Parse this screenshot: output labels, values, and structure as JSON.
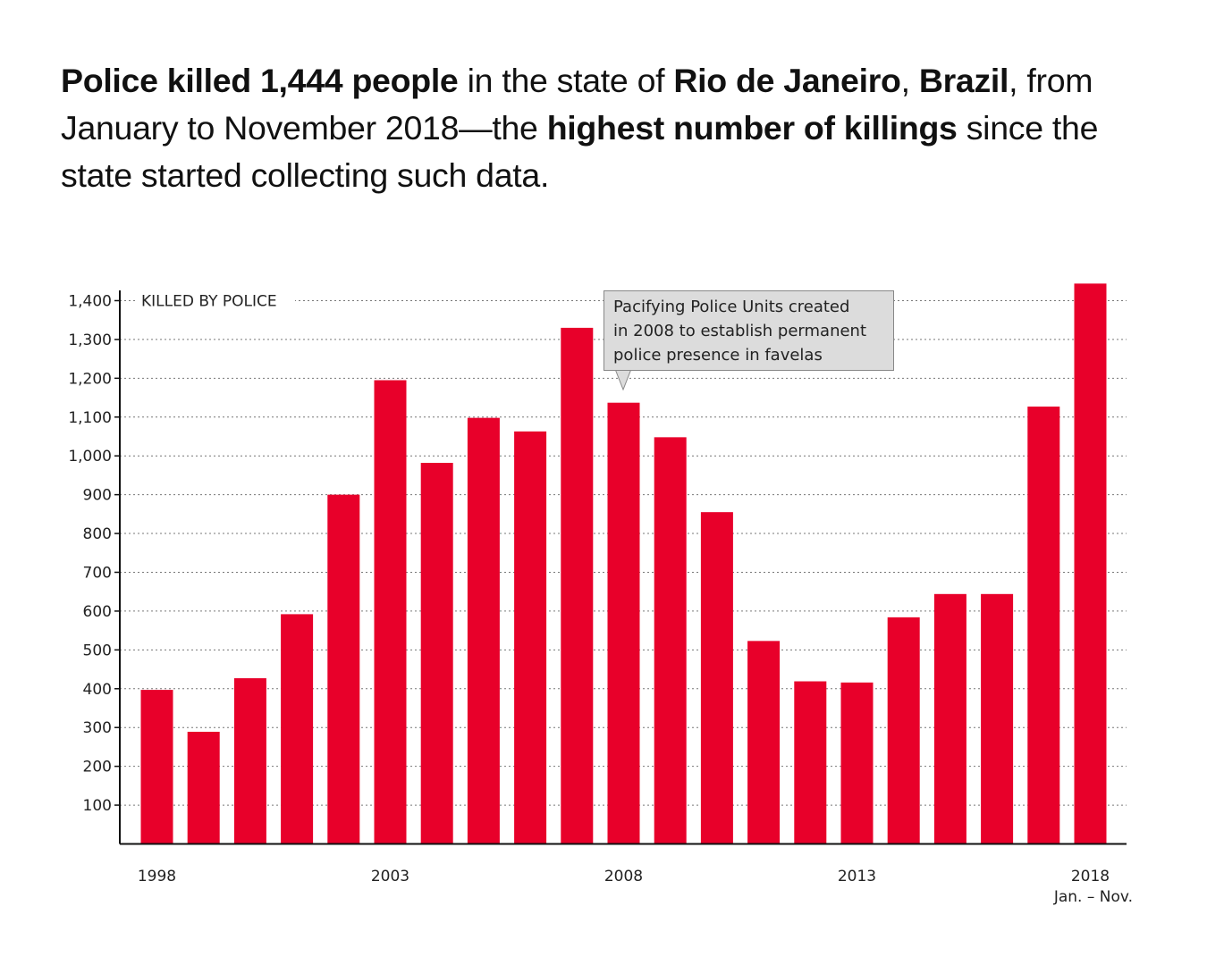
{
  "headline": {
    "parts": [
      {
        "text": "Police killed 1,444 people",
        "bold": true
      },
      {
        "text": " in the state of ",
        "bold": false
      },
      {
        "text": "Rio de Janeiro",
        "bold": true
      },
      {
        "text": ", ",
        "bold": false
      },
      {
        "text": "Brazil",
        "bold": true
      },
      {
        "text": ", from January to November 2018—the ",
        "bold": false
      },
      {
        "text": "highest number of killings",
        "bold": true
      },
      {
        "text": " since the state started collecting such data.",
        "bold": false
      }
    ]
  },
  "chart_data": {
    "type": "bar",
    "ylabel": "KILLED BY POLICE",
    "categories": [
      "1998",
      "1999",
      "2000",
      "2001",
      "2002",
      "2003",
      "2004",
      "2005",
      "2006",
      "2007",
      "2008",
      "2009",
      "2010",
      "2011",
      "2012",
      "2013",
      "2014",
      "2015",
      "2016",
      "2017",
      "2018"
    ],
    "values": [
      397,
      289,
      427,
      592,
      900,
      1195,
      982,
      1098,
      1063,
      1330,
      1137,
      1048,
      855,
      523,
      419,
      416,
      584,
      644,
      644,
      1127,
      1444
    ],
    "x_tick_labels": [
      "1998",
      "2003",
      "2008",
      "2013",
      "2018"
    ],
    "x_note": "Jan. – Nov.",
    "y_ticks": [
      100,
      200,
      300,
      400,
      500,
      600,
      700,
      800,
      900,
      1000,
      1100,
      1200,
      1300,
      1400
    ],
    "y_tick_labels": [
      "100",
      "200",
      "300",
      "400",
      "500",
      "600",
      "700",
      "800",
      "900",
      "1,000",
      "1,100",
      "1,200",
      "1,300",
      "1,400"
    ],
    "ylim": [
      0,
      1450
    ],
    "grid": "dotted horizontal",
    "bar_color": "#e8002a",
    "annotation": {
      "text_lines": [
        "Pacifying Police Units created",
        "in 2008 to establish permanent",
        "police presence in favelas"
      ],
      "points_to": "2008"
    }
  }
}
